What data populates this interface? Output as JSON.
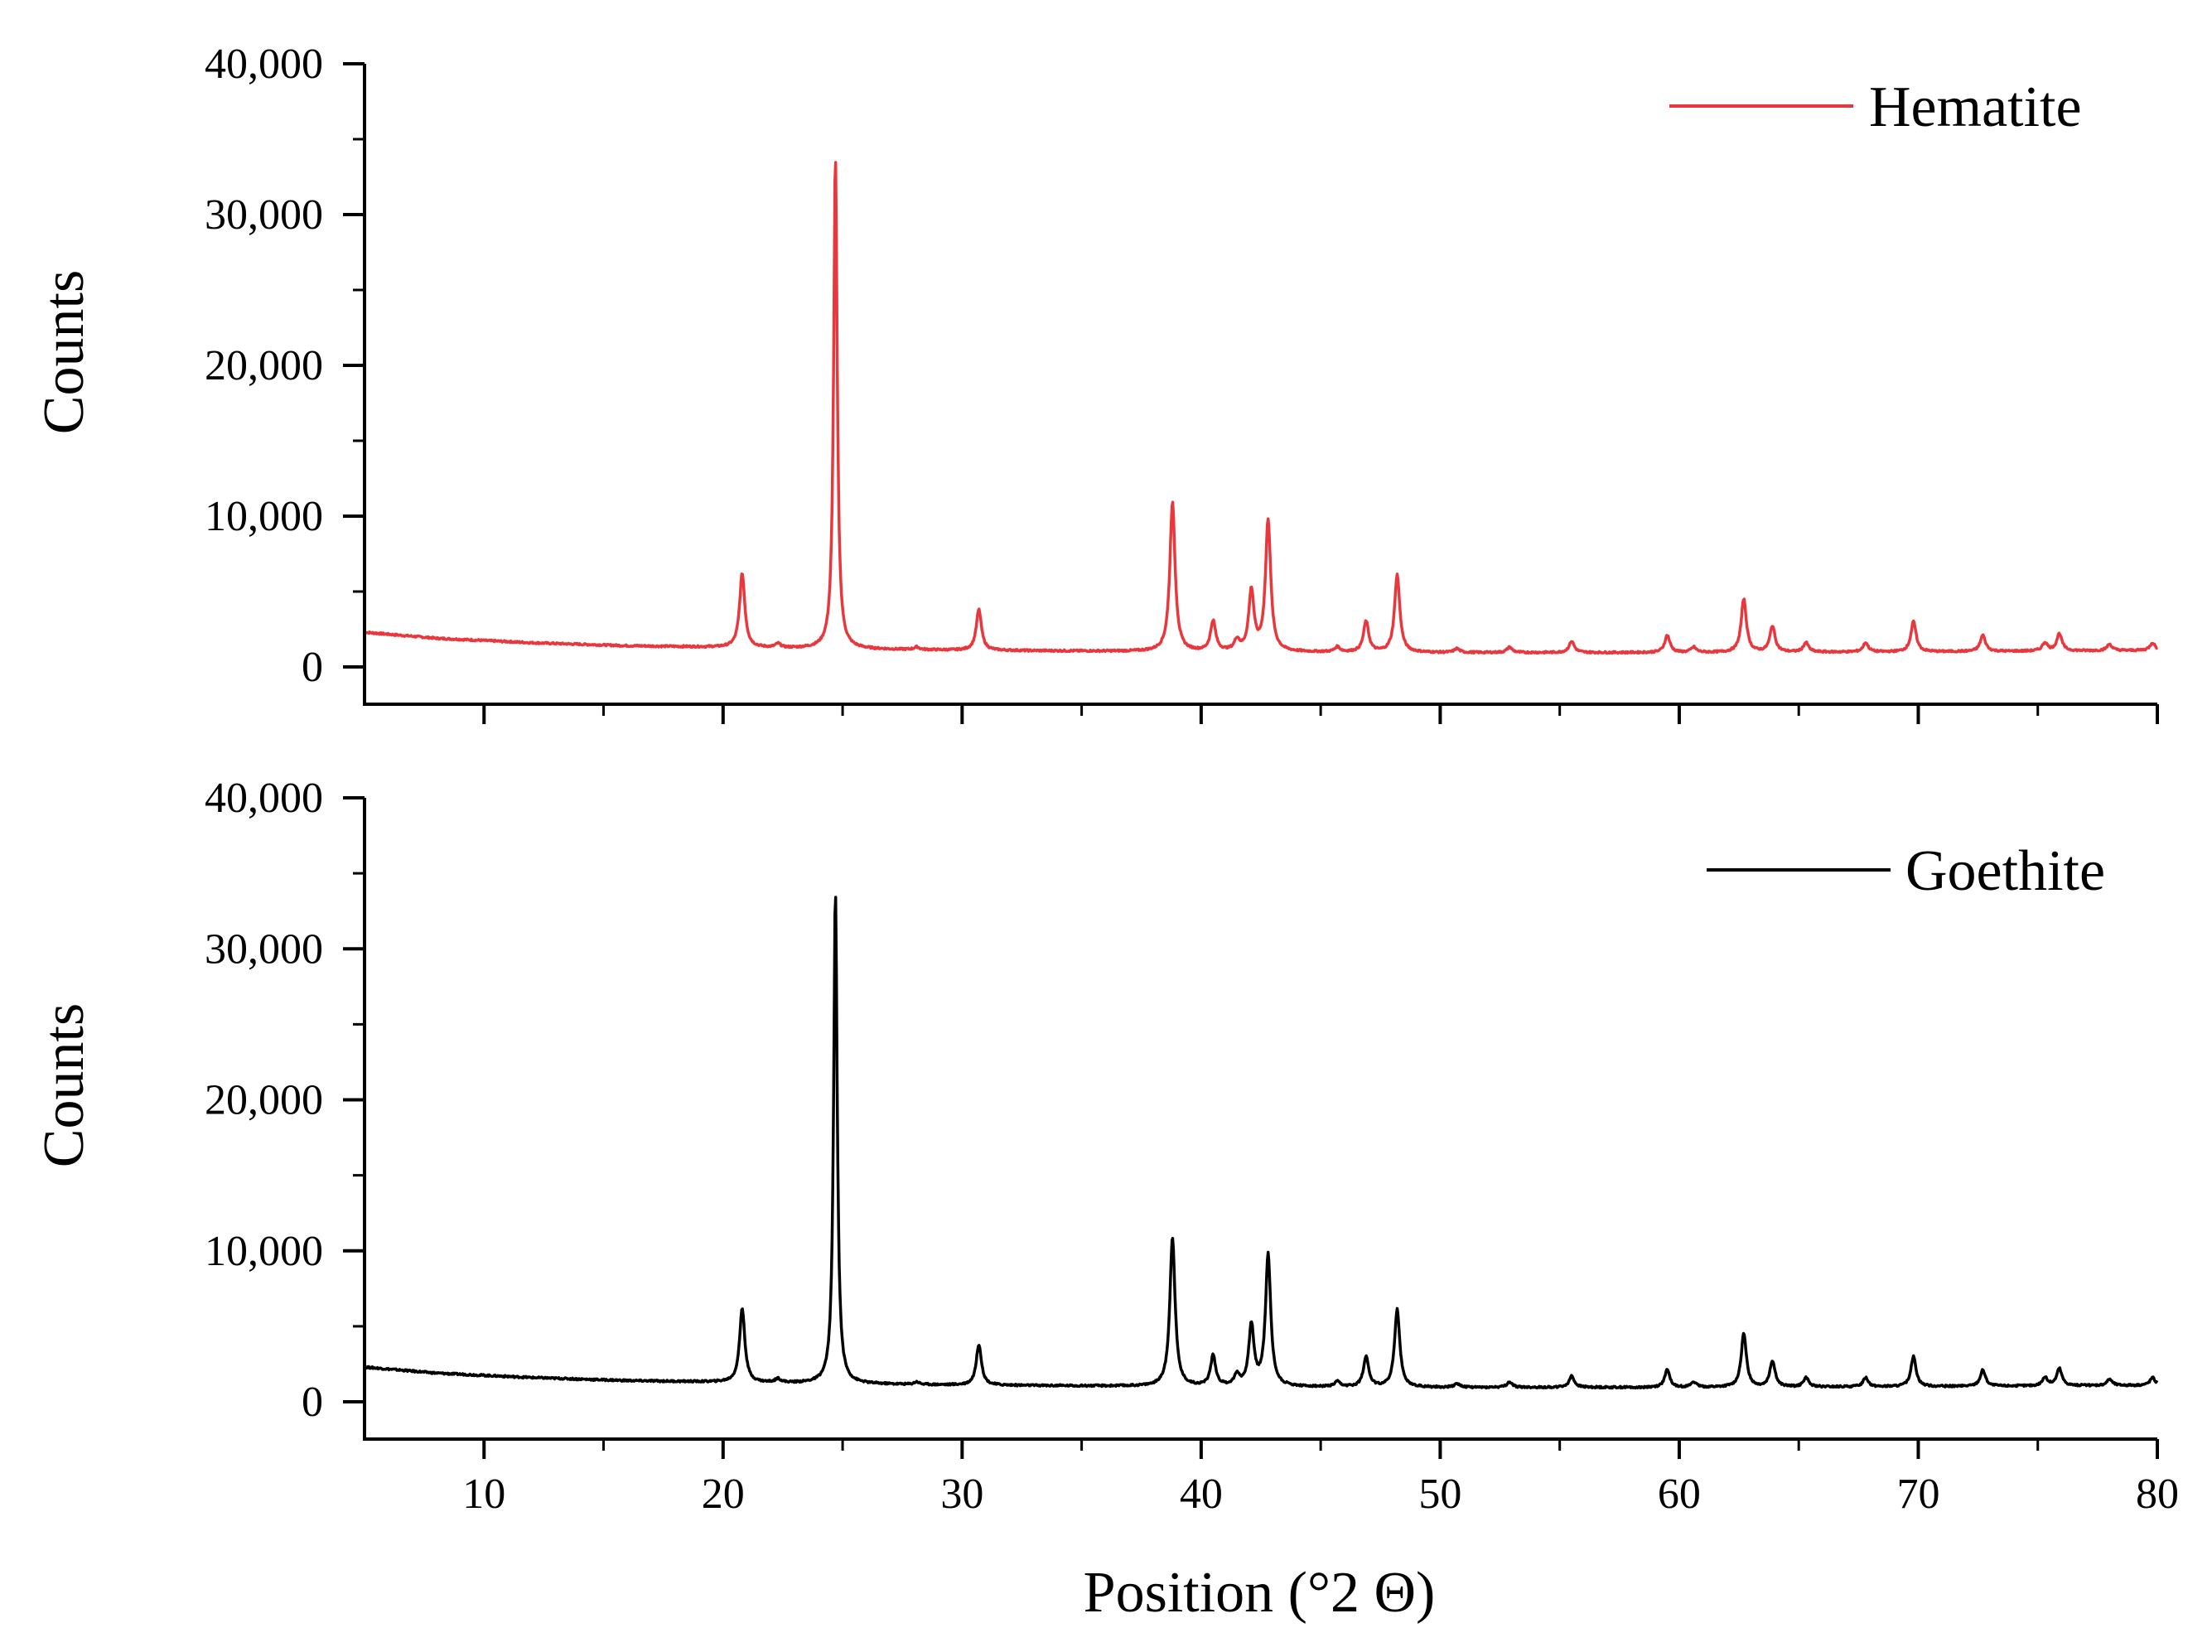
{
  "chart_data": [
    {
      "type": "line",
      "ylabel": "Counts",
      "xlabel": "",
      "xlim": [
        5,
        80
      ],
      "ylim": [
        0,
        40000
      ],
      "yticks": [
        0,
        10000,
        20000,
        30000,
        40000
      ],
      "ytick_labels": [
        "0",
        "10,000",
        "20,000",
        "30,000",
        "40,000"
      ],
      "legend_position": "top-right",
      "series": [
        {
          "name": "Hematite",
          "color": "#e8383d",
          "baseline": [
            [
              5,
              2300
            ],
            [
              8,
              1900
            ],
            [
              12,
              1600
            ],
            [
              16,
              1400
            ],
            [
              20,
              1300
            ],
            [
              24,
              1200
            ],
            [
              30,
              1100
            ],
            [
              40,
              1000
            ],
            [
              50,
              950
            ],
            [
              60,
              950
            ],
            [
              70,
              1000
            ],
            [
              80,
              1100
            ]
          ],
          "peaks": [
            {
              "x": 20.8,
              "y": 6200
            },
            {
              "x": 22.3,
              "y": 1500
            },
            {
              "x": 24.7,
              "y": 33800
            },
            {
              "x": 28.1,
              "y": 1300
            },
            {
              "x": 30.7,
              "y": 3800
            },
            {
              "x": 38.8,
              "y": 10900
            },
            {
              "x": 40.5,
              "y": 3000
            },
            {
              "x": 41.5,
              "y": 1700
            },
            {
              "x": 42.1,
              "y": 5000
            },
            {
              "x": 42.8,
              "y": 9700
            },
            {
              "x": 45.7,
              "y": 1300
            },
            {
              "x": 46.9,
              "y": 3000
            },
            {
              "x": 48.2,
              "y": 6100
            },
            {
              "x": 50.7,
              "y": 1200
            },
            {
              "x": 52.9,
              "y": 1300
            },
            {
              "x": 55.5,
              "y": 1700
            },
            {
              "x": 59.5,
              "y": 2100
            },
            {
              "x": 60.6,
              "y": 1300
            },
            {
              "x": 62.7,
              "y": 4500
            },
            {
              "x": 63.9,
              "y": 2700
            },
            {
              "x": 65.3,
              "y": 1600
            },
            {
              "x": 67.8,
              "y": 1600
            },
            {
              "x": 69.8,
              "y": 3000
            },
            {
              "x": 72.7,
              "y": 2100
            },
            {
              "x": 75.3,
              "y": 1600
            },
            {
              "x": 75.9,
              "y": 2200
            },
            {
              "x": 78.0,
              "y": 1500
            },
            {
              "x": 79.8,
              "y": 1600
            }
          ]
        }
      ]
    },
    {
      "type": "line",
      "ylabel": "Counts",
      "xlabel": "Position (°2 Θ)",
      "xlim": [
        5,
        80
      ],
      "ylim": [
        0,
        40000
      ],
      "yticks": [
        0,
        10000,
        20000,
        30000,
        40000
      ],
      "ytick_labels": [
        "0",
        "10,000",
        "20,000",
        "30,000",
        "40,000"
      ],
      "xticks": [
        10,
        20,
        30,
        40,
        50,
        60,
        70,
        80
      ],
      "xtick_labels": [
        "10",
        "20",
        "30",
        "40",
        "50",
        "60",
        "70",
        "80"
      ],
      "legend_position": "top-right",
      "series": [
        {
          "name": "Goethite",
          "color": "#000000",
          "baseline": [
            [
              5,
              2300
            ],
            [
              8,
              1900
            ],
            [
              12,
              1600
            ],
            [
              16,
              1400
            ],
            [
              20,
              1300
            ],
            [
              24,
              1200
            ],
            [
              30,
              1100
            ],
            [
              40,
              1000
            ],
            [
              50,
              950
            ],
            [
              60,
              950
            ],
            [
              70,
              1000
            ],
            [
              80,
              1100
            ]
          ],
          "peaks": [
            {
              "x": 20.8,
              "y": 6200
            },
            {
              "x": 22.3,
              "y": 1500
            },
            {
              "x": 24.7,
              "y": 33800
            },
            {
              "x": 28.1,
              "y": 1300
            },
            {
              "x": 30.7,
              "y": 3800
            },
            {
              "x": 38.8,
              "y": 10900
            },
            {
              "x": 40.5,
              "y": 3000
            },
            {
              "x": 41.5,
              "y": 1700
            },
            {
              "x": 42.1,
              "y": 5000
            },
            {
              "x": 42.8,
              "y": 9700
            },
            {
              "x": 45.7,
              "y": 1300
            },
            {
              "x": 46.9,
              "y": 3000
            },
            {
              "x": 48.2,
              "y": 6100
            },
            {
              "x": 50.7,
              "y": 1200
            },
            {
              "x": 52.9,
              "y": 1300
            },
            {
              "x": 55.5,
              "y": 1700
            },
            {
              "x": 59.5,
              "y": 2100
            },
            {
              "x": 60.6,
              "y": 1300
            },
            {
              "x": 62.7,
              "y": 4500
            },
            {
              "x": 63.9,
              "y": 2700
            },
            {
              "x": 65.3,
              "y": 1600
            },
            {
              "x": 67.8,
              "y": 1600
            },
            {
              "x": 69.8,
              "y": 3000
            },
            {
              "x": 72.7,
              "y": 2100
            },
            {
              "x": 75.3,
              "y": 1600
            },
            {
              "x": 75.9,
              "y": 2200
            },
            {
              "x": 78.0,
              "y": 1500
            },
            {
              "x": 79.8,
              "y": 1600
            }
          ]
        }
      ]
    }
  ]
}
